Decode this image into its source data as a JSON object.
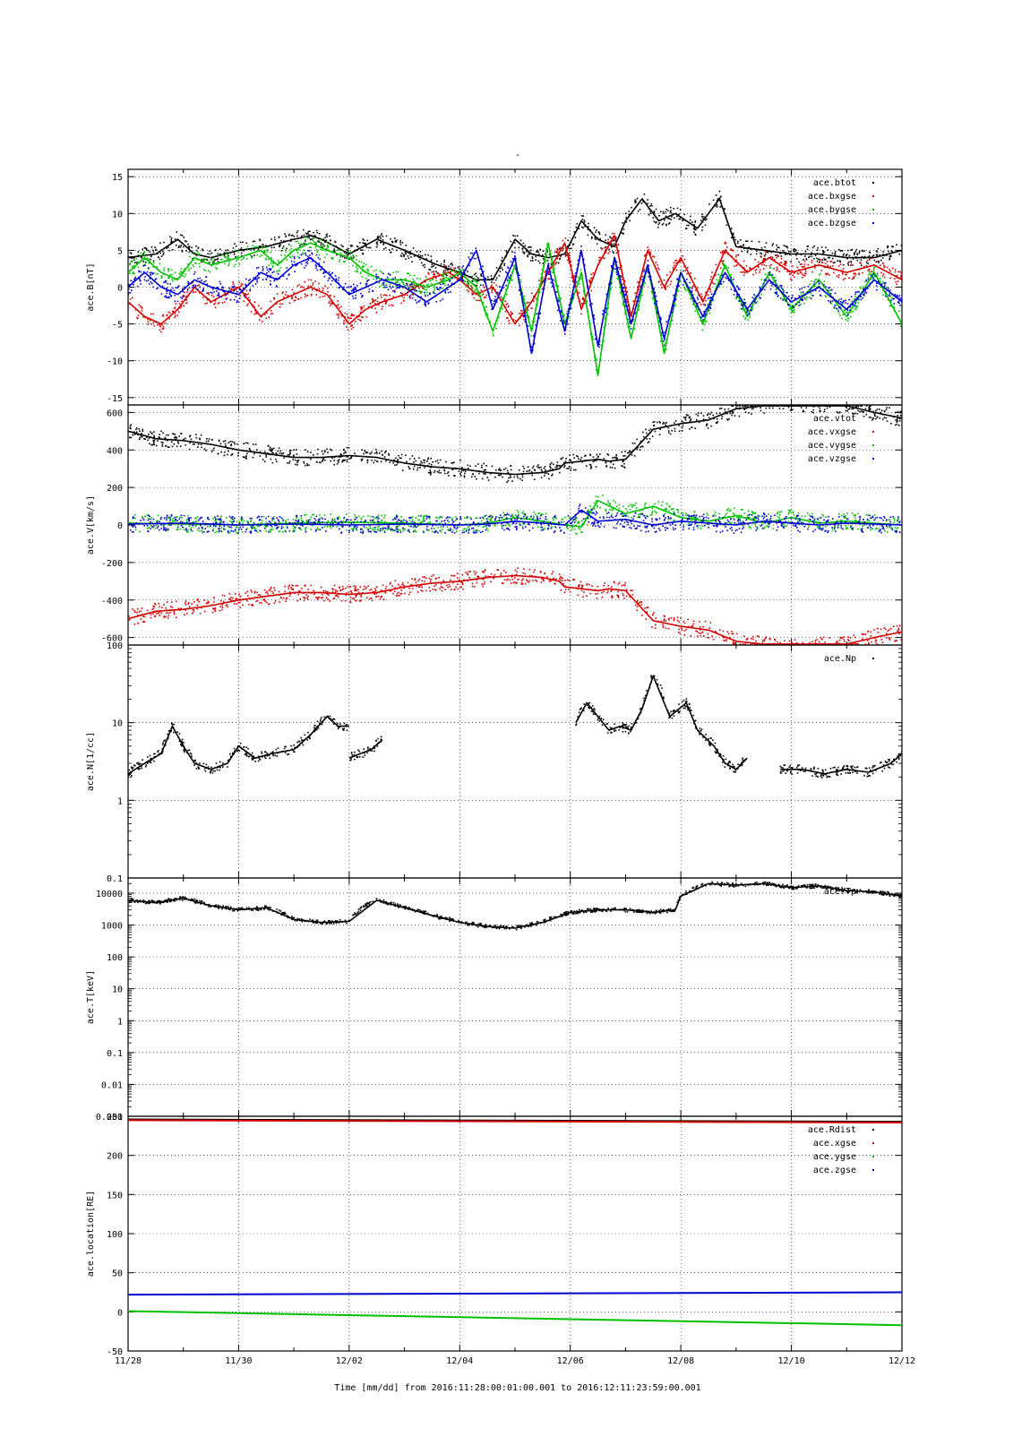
{
  "page": {
    "top_mark": "-"
  },
  "footer": {
    "time_label": "Time [mm/dd]   from 2016:11:28:00:01:00.001   to   2016:12:11:23:59:00.001"
  },
  "chart_data": [
    {
      "type": "scatter",
      "ylabel": "ace.B[nT]",
      "yscale": "linear",
      "ylim": [
        -16,
        16
      ],
      "yticks": [
        15,
        10,
        5,
        0,
        -5,
        -10,
        -15
      ],
      "ytick_labels": [
        "15",
        "10",
        "5",
        "0",
        "-5",
        "-10",
        "-15"
      ],
      "grid": true,
      "legend_position": "top-right",
      "series": [
        {
          "name": "ace.btot",
          "color": "#000000",
          "x": [
            0,
            0.5,
            0.9,
            1.2,
            1.5,
            2,
            2.5,
            3,
            3.3,
            3.5,
            4,
            4.5,
            5,
            5.3,
            5.6,
            6,
            6.3,
            6.6,
            7,
            7.3,
            7.6,
            7.9,
            8.2,
            8.5,
            8.8,
            9,
            9.3,
            9.6,
            9.9,
            10.3,
            10.7,
            11,
            11.5,
            12,
            12.5,
            13,
            13.5,
            14
          ],
          "y": [
            4,
            4.5,
            6.5,
            4.5,
            4,
            5,
            5.5,
            6.5,
            7,
            6.5,
            4.5,
            6.5,
            5,
            4,
            3,
            2,
            1,
            1,
            6.5,
            4.5,
            4,
            4.5,
            9,
            6.5,
            5.5,
            9,
            12,
            9,
            10,
            8,
            12,
            5.5,
            5,
            4.5,
            4.5,
            4,
            4,
            5
          ]
        },
        {
          "name": "ace.bxgse",
          "color": "#d40000",
          "x": [
            0,
            0.3,
            0.6,
            0.9,
            1.2,
            1.5,
            2,
            2.4,
            2.7,
            3,
            3.3,
            3.6,
            4,
            4.3,
            4.6,
            5,
            5.4,
            5.8,
            6,
            6.3,
            6.6,
            7,
            7.3,
            7.6,
            7.9,
            8.2,
            8.5,
            8.8,
            9.1,
            9.4,
            9.7,
            10,
            10.4,
            10.8,
            11.2,
            11.6,
            12,
            12.5,
            13,
            13.5,
            14
          ],
          "y": [
            -2,
            -4,
            -5,
            -3,
            0,
            -2,
            0,
            -4,
            -2,
            -1,
            0,
            -1,
            -5,
            -3,
            -2,
            -1,
            1,
            2,
            1,
            -1,
            0,
            -5,
            -2,
            2,
            6,
            -3,
            3,
            7,
            -4,
            5,
            0,
            4,
            -2,
            5,
            2,
            4,
            2,
            3,
            2,
            3,
            1
          ]
        },
        {
          "name": "ace.bygse",
          "color": "#00c000",
          "x": [
            0,
            0.3,
            0.6,
            0.9,
            1.2,
            1.5,
            2,
            2.4,
            2.7,
            3,
            3.3,
            3.6,
            4,
            4.3,
            4.6,
            5,
            5.4,
            5.8,
            6,
            6.3,
            6.6,
            7,
            7.3,
            7.6,
            7.9,
            8.2,
            8.5,
            8.8,
            9.1,
            9.4,
            9.7,
            10,
            10.4,
            10.8,
            11.2,
            11.6,
            12,
            12.5,
            13,
            13.5,
            14
          ],
          "y": [
            2,
            4,
            2,
            1,
            4,
            3,
            4,
            5,
            3,
            5,
            6,
            5,
            4,
            2,
            1,
            1,
            0,
            1,
            2,
            0,
            -6,
            3,
            -6,
            6,
            -5,
            2,
            -12,
            4,
            -7,
            3,
            -9,
            2,
            -5,
            3,
            -4,
            2,
            -3,
            1,
            -4,
            2,
            -5
          ]
        },
        {
          "name": "ace.bzgse",
          "color": "#0000d0",
          "x": [
            0,
            0.3,
            0.6,
            0.9,
            1.2,
            1.5,
            2,
            2.4,
            2.7,
            3,
            3.3,
            3.6,
            4,
            4.3,
            4.6,
            5,
            5.4,
            5.8,
            6,
            6.3,
            6.6,
            7,
            7.3,
            7.6,
            7.9,
            8.2,
            8.5,
            8.8,
            9.1,
            9.4,
            9.7,
            10,
            10.4,
            10.8,
            11.2,
            11.6,
            12,
            12.5,
            13,
            13.5,
            14
          ],
          "y": [
            0,
            2,
            0,
            -1,
            1,
            0,
            -1,
            2,
            1,
            3,
            4,
            2,
            -1,
            0,
            1,
            0,
            -2,
            0,
            1,
            5,
            -3,
            4,
            -9,
            3,
            -6,
            5,
            -8,
            4,
            -5,
            3,
            -7,
            2,
            -4,
            2,
            -3,
            1,
            -2,
            0,
            -3,
            1,
            -2
          ]
        }
      ]
    },
    {
      "type": "scatter",
      "ylabel": "ace.V[km/s]",
      "yscale": "linear",
      "ylim": [
        -640,
        640
      ],
      "yticks": [
        600,
        400,
        200,
        0,
        -200,
        -400,
        -600
      ],
      "ytick_labels": [
        "600",
        "400",
        "200",
        "0",
        "-200",
        "-400",
        "-600"
      ],
      "grid": true,
      "legend_position": "top-right",
      "series": [
        {
          "name": "ace.vtot",
          "color": "#000000",
          "x": [
            0,
            0.5,
            1,
            1.5,
            2,
            2.5,
            3,
            3.5,
            4,
            4.5,
            5,
            5.5,
            6,
            6.5,
            7,
            7.5,
            7.8,
            7.9,
            8.2,
            8.5,
            8.7,
            9,
            9.5,
            10,
            10.5,
            11,
            11.5,
            12,
            12.5,
            13,
            13.5,
            14
          ],
          "y": [
            500,
            460,
            450,
            430,
            400,
            380,
            360,
            360,
            370,
            360,
            330,
            310,
            300,
            280,
            270,
            280,
            300,
            330,
            340,
            350,
            340,
            350,
            510,
            540,
            560,
            620,
            640,
            650,
            640,
            640,
            600,
            570
          ]
        },
        {
          "name": "ace.vxgse",
          "color": "#d40000",
          "x": [
            0,
            0.5,
            1,
            1.5,
            2,
            2.5,
            3,
            3.5,
            4,
            4.5,
            5,
            5.5,
            6,
            6.5,
            7,
            7.5,
            7.8,
            7.9,
            8.2,
            8.5,
            8.7,
            9,
            9.5,
            10,
            10.5,
            11,
            11.5,
            12,
            12.5,
            13,
            13.5,
            14
          ],
          "y": [
            -500,
            -460,
            -450,
            -430,
            -400,
            -380,
            -360,
            -360,
            -370,
            -360,
            -330,
            -310,
            -300,
            -280,
            -270,
            -280,
            -300,
            -330,
            -340,
            -350,
            -340,
            -350,
            -510,
            -540,
            -560,
            -620,
            -640,
            -650,
            -640,
            -640,
            -600,
            -570
          ]
        },
        {
          "name": "ace.vygse",
          "color": "#00c000",
          "x": [
            0,
            1,
            2,
            3,
            4,
            5,
            6,
            6.5,
            7,
            7.5,
            7.9,
            8.2,
            8.5,
            9,
            9.5,
            10,
            10.5,
            11,
            11.5,
            12,
            12.5,
            13,
            14
          ],
          "y": [
            10,
            5,
            0,
            10,
            15,
            10,
            0,
            10,
            40,
            20,
            0,
            -10,
            130,
            60,
            100,
            40,
            20,
            50,
            10,
            40,
            10,
            20,
            0
          ]
        },
        {
          "name": "ace.vzgse",
          "color": "#0000d0",
          "x": [
            0,
            1,
            2,
            3,
            4,
            5,
            6,
            6.5,
            7,
            7.5,
            7.9,
            8.2,
            8.5,
            9,
            9.5,
            10,
            10.5,
            11,
            11.5,
            12,
            12.5,
            13,
            14
          ],
          "y": [
            5,
            10,
            0,
            5,
            0,
            5,
            0,
            5,
            20,
            10,
            0,
            80,
            20,
            30,
            0,
            20,
            10,
            0,
            20,
            10,
            0,
            10,
            0
          ]
        }
      ]
    },
    {
      "type": "scatter",
      "ylabel": "ace.N[1/cc]",
      "yscale": "log",
      "ylim": [
        0.1,
        100
      ],
      "yticks": [
        100,
        10,
        1,
        0.1
      ],
      "ytick_labels": [
        "100",
        "10",
        "1",
        "0.1"
      ],
      "grid": true,
      "legend_position": "top-right",
      "series": [
        {
          "name": "ace.Np",
          "color": "#000000",
          "segments": [
            {
              "x": [
                0,
                0.3,
                0.6,
                0.8,
                1.0,
                1.2,
                1.5,
                1.8,
                2.0,
                2.3,
                2.6,
                3.0,
                3.3,
                3.6,
                3.8,
                4.0
              ],
              "y": [
                2.2,
                3,
                4,
                9,
                5,
                3,
                2.5,
                3,
                5,
                3.5,
                4,
                4.5,
                7,
                12,
                9,
                9
              ]
            },
            {
              "x": [
                4.0,
                4.2,
                4.4,
                4.6
              ],
              "y": [
                3.5,
                4,
                4.5,
                6
              ]
            },
            {
              "x": [
                8.1,
                8.3,
                8.5,
                8.7,
                8.9,
                9.1,
                9.3,
                9.5,
                9.8,
                10.1,
                10.3,
                10.6,
                10.8,
                11.0,
                11.2
              ],
              "y": [
                10,
                18,
                12,
                8,
                9,
                8,
                15,
                40,
                12,
                18,
                8,
                5,
                3,
                2.5,
                3.5
              ]
            },
            {
              "x": [
                11.8,
                12.2,
                12.6,
                13.0,
                13.4,
                13.8,
                14
              ],
              "y": [
                2.5,
                2.5,
                2.2,
                2.5,
                2.3,
                3,
                4
              ]
            }
          ]
        }
      ]
    },
    {
      "type": "scatter",
      "ylabel": "ace.T[keV]",
      "yscale": "log",
      "ylim": [
        0.001,
        30000
      ],
      "yticks": [
        10000,
        1000,
        100,
        10,
        1,
        0.1,
        0.01,
        0.001
      ],
      "ytick_labels": [
        "10000",
        "1000",
        "100",
        "10",
        "1",
        "0.1",
        "0.01",
        "0.001"
      ],
      "grid": true,
      "legend_position": "top-right",
      "series": [
        {
          "name": "ace.Tp",
          "color": "#000000",
          "x": [
            0,
            0.5,
            1,
            1.5,
            2,
            2.5,
            3,
            3.5,
            4,
            4.5,
            5,
            5.5,
            6,
            6.5,
            7,
            7.5,
            8,
            8.5,
            9,
            9.5,
            9.9,
            10,
            10.5,
            11,
            11.5,
            12,
            12.5,
            13,
            13.5,
            14
          ],
          "y": [
            6000,
            5000,
            7000,
            4000,
            3000,
            3500,
            1500,
            1200,
            1300,
            6000,
            3500,
            2000,
            1200,
            900,
            800,
            1200,
            2500,
            3000,
            3000,
            2500,
            3000,
            8000,
            20000,
            18000,
            20000,
            15000,
            17000,
            12000,
            11000,
            8000
          ]
        }
      ]
    },
    {
      "type": "line",
      "ylabel": "ace.location[RE]",
      "yscale": "linear",
      "ylim": [
        -50,
        250
      ],
      "yticks": [
        250,
        200,
        150,
        100,
        50,
        0,
        -50
      ],
      "ytick_labels": [
        "250",
        "200",
        "150",
        "100",
        "50",
        "0",
        "-50"
      ],
      "grid": true,
      "legend_position": "top-right",
      "xlabel": "Time [mm/dd]",
      "x_tick_labels": [
        "11/28",
        "11/30",
        "12/02",
        "12/04",
        "12/06",
        "12/08",
        "12/10",
        "12/12"
      ],
      "series": [
        {
          "name": "ace.Rdist",
          "color": "#000000",
          "x": [
            0,
            14
          ],
          "y": [
            246,
            243
          ]
        },
        {
          "name": "ace.xgse",
          "color": "#d40000",
          "x": [
            0,
            14
          ],
          "y": [
            245,
            242
          ]
        },
        {
          "name": "ace.ygse",
          "color": "#00c000",
          "x": [
            0,
            14
          ],
          "y": [
            1,
            -17
          ]
        },
        {
          "name": "ace.zgse",
          "color": "#0000d0",
          "x": [
            0,
            14
          ],
          "y": [
            22,
            25
          ]
        }
      ]
    }
  ]
}
